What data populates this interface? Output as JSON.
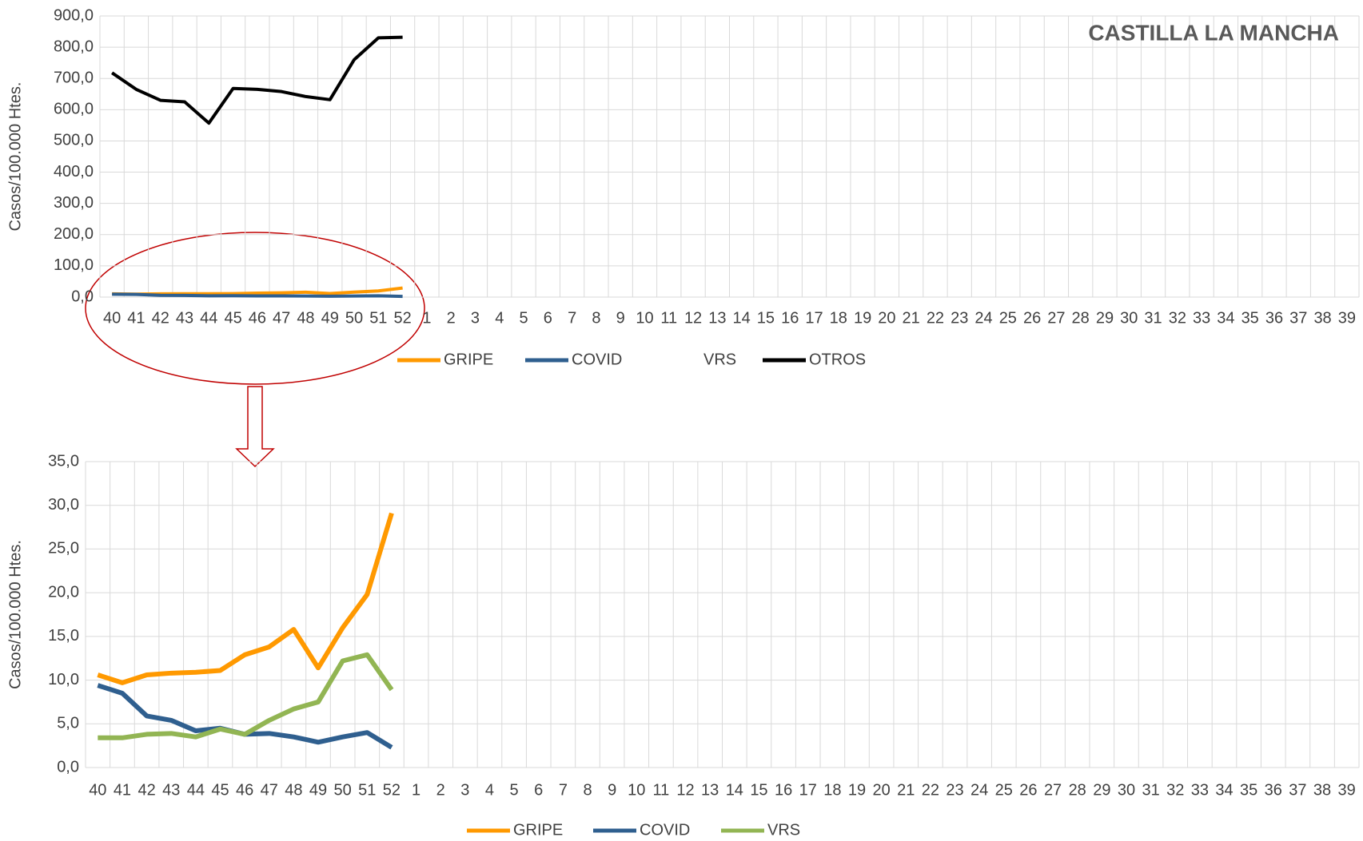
{
  "chart_data": [
    {
      "type": "line",
      "title": "CASTILLA LA MANCHA",
      "y_label": "Casos/100.000 Htes.",
      "categories": [
        "40",
        "41",
        "42",
        "43",
        "44",
        "45",
        "46",
        "47",
        "48",
        "49",
        "50",
        "51",
        "52",
        "1",
        "2",
        "3",
        "4",
        "5",
        "6",
        "7",
        "8",
        "9",
        "10",
        "11",
        "12",
        "13",
        "14",
        "15",
        "16",
        "17",
        "18",
        "19",
        "20",
        "21",
        "22",
        "23",
        "24",
        "25",
        "26",
        "27",
        "28",
        "29",
        "30",
        "31",
        "32",
        "33",
        "34",
        "35",
        "36",
        "37",
        "38",
        "39"
      ],
      "series": [
        {
          "name": "GRIPE",
          "color": "#ff9900",
          "values": [
            10.6,
            9.7,
            10.6,
            10.8,
            10.9,
            11.1,
            12.9,
            13.8,
            15.8,
            11.4,
            16.0,
            19.8,
            29.1,
            null,
            null,
            null,
            null,
            null,
            null,
            null,
            null,
            null,
            null,
            null,
            null,
            null,
            null,
            null,
            null,
            null,
            null,
            null,
            null,
            null,
            null,
            null,
            null,
            null,
            null,
            null,
            null,
            null,
            null,
            null,
            null,
            null,
            null,
            null,
            null,
            null,
            null,
            null
          ]
        },
        {
          "name": "COVID",
          "color": "#2f5f8f",
          "values": [
            9.4,
            8.5,
            5.9,
            5.4,
            4.2,
            4.5,
            3.8,
            3.9,
            3.5,
            2.9,
            3.5,
            4.0,
            2.3,
            null,
            null,
            null,
            null,
            null,
            null,
            null,
            null,
            null,
            null,
            null,
            null,
            null,
            null,
            null,
            null,
            null,
            null,
            null,
            null,
            null,
            null,
            null,
            null,
            null,
            null,
            null,
            null,
            null,
            null,
            null,
            null,
            null,
            null,
            null,
            null,
            null,
            null,
            null
          ]
        },
        {
          "name": "VRS",
          "color": "none",
          "values": [
            3.4,
            3.4,
            3.8,
            3.9,
            3.5,
            4.4,
            3.8,
            5.4,
            6.7,
            7.5,
            12.2,
            12.9,
            8.9,
            null,
            null,
            null,
            null,
            null,
            null,
            null,
            null,
            null,
            null,
            null,
            null,
            null,
            null,
            null,
            null,
            null,
            null,
            null,
            null,
            null,
            null,
            null,
            null,
            null,
            null,
            null,
            null,
            null,
            null,
            null,
            null,
            null,
            null,
            null,
            null,
            null,
            null,
            null
          ]
        },
        {
          "name": "OTROS",
          "color": "#000000",
          "values": [
            718,
            665,
            630,
            625,
            557,
            668,
            665,
            658,
            642,
            632,
            760,
            830,
            832,
            null,
            null,
            null,
            null,
            null,
            null,
            null,
            null,
            null,
            null,
            null,
            null,
            null,
            null,
            null,
            null,
            null,
            null,
            null,
            null,
            null,
            null,
            null,
            null,
            null,
            null,
            null,
            null,
            null,
            null,
            null,
            null,
            null,
            null,
            null,
            null,
            null,
            null,
            null
          ]
        }
      ],
      "ylim": [
        0,
        900
      ],
      "yticks": [
        {
          "value": 0,
          "label": "0,0"
        },
        {
          "value": 100,
          "label": "100,0"
        },
        {
          "value": 200,
          "label": "200,0"
        },
        {
          "value": 300,
          "label": "300,0"
        },
        {
          "value": 400,
          "label": "400,0"
        },
        {
          "value": 500,
          "label": "500,0"
        },
        {
          "value": 600,
          "label": "600,0"
        },
        {
          "value": 700,
          "label": "700,0"
        },
        {
          "value": 800,
          "label": "800,0"
        },
        {
          "value": 900,
          "label": "900,0"
        }
      ],
      "grid": true
    },
    {
      "type": "line",
      "y_label": "Casos/100.000 Htes.",
      "categories": [
        "40",
        "41",
        "42",
        "43",
        "44",
        "45",
        "46",
        "47",
        "48",
        "49",
        "50",
        "51",
        "52",
        "1",
        "2",
        "3",
        "4",
        "5",
        "6",
        "7",
        "8",
        "9",
        "10",
        "11",
        "12",
        "13",
        "14",
        "15",
        "16",
        "17",
        "18",
        "19",
        "20",
        "21",
        "22",
        "23",
        "24",
        "25",
        "26",
        "27",
        "28",
        "29",
        "30",
        "31",
        "32",
        "33",
        "34",
        "35",
        "36",
        "37",
        "38",
        "39"
      ],
      "series": [
        {
          "name": "GRIPE",
          "color": "#ff9900",
          "values": [
            10.6,
            9.7,
            10.6,
            10.8,
            10.9,
            11.1,
            12.9,
            13.8,
            15.8,
            11.4,
            16.0,
            19.8,
            29.1,
            null,
            null,
            null,
            null,
            null,
            null,
            null,
            null,
            null,
            null,
            null,
            null,
            null,
            null,
            null,
            null,
            null,
            null,
            null,
            null,
            null,
            null,
            null,
            null,
            null,
            null,
            null,
            null,
            null,
            null,
            null,
            null,
            null,
            null,
            null,
            null,
            null,
            null,
            null
          ]
        },
        {
          "name": "COVID",
          "color": "#2f5f8f",
          "values": [
            9.4,
            8.5,
            5.9,
            5.4,
            4.2,
            4.5,
            3.8,
            3.9,
            3.5,
            2.9,
            3.5,
            4.0,
            2.3,
            null,
            null,
            null,
            null,
            null,
            null,
            null,
            null,
            null,
            null,
            null,
            null,
            null,
            null,
            null,
            null,
            null,
            null,
            null,
            null,
            null,
            null,
            null,
            null,
            null,
            null,
            null,
            null,
            null,
            null,
            null,
            null,
            null,
            null,
            null,
            null,
            null,
            null,
            null
          ]
        },
        {
          "name": "VRS",
          "color": "#92b553",
          "values": [
            3.4,
            3.4,
            3.8,
            3.9,
            3.5,
            4.4,
            3.8,
            5.4,
            6.7,
            7.5,
            12.2,
            12.9,
            8.9,
            null,
            null,
            null,
            null,
            null,
            null,
            null,
            null,
            null,
            null,
            null,
            null,
            null,
            null,
            null,
            null,
            null,
            null,
            null,
            null,
            null,
            null,
            null,
            null,
            null,
            null,
            null,
            null,
            null,
            null,
            null,
            null,
            null,
            null,
            null,
            null,
            null,
            null,
            null
          ]
        }
      ],
      "ylim": [
        0,
        35
      ],
      "yticks": [
        {
          "value": 0,
          "label": "0,0"
        },
        {
          "value": 5,
          "label": "5,0"
        },
        {
          "value": 10,
          "label": "10,0"
        },
        {
          "value": 15,
          "label": "15,0"
        },
        {
          "value": 20,
          "label": "20,0"
        },
        {
          "value": 25,
          "label": "25,0"
        },
        {
          "value": 30,
          "label": "30,0"
        },
        {
          "value": 35,
          "label": "35,0"
        }
      ],
      "grid": true
    }
  ]
}
